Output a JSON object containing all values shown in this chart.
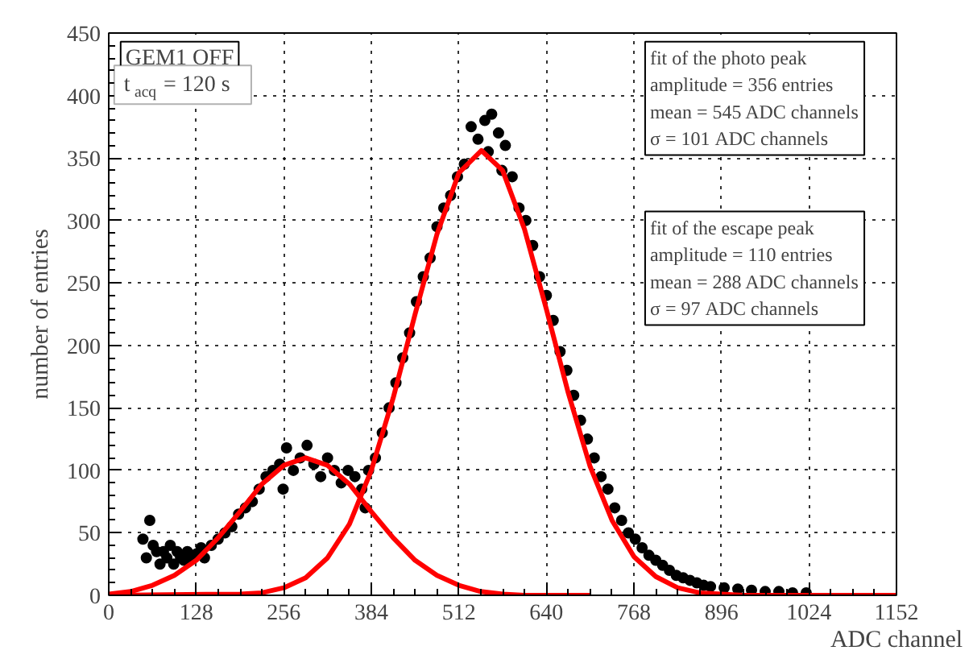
{
  "chart_data": {
    "type": "scatter",
    "xlabel": "ADC channel",
    "ylabel": "number of entries",
    "xlim": [
      0,
      1152
    ],
    "xticks": [
      0,
      128,
      256,
      384,
      512,
      640,
      768,
      896,
      1024,
      1152
    ],
    "ylim": [
      0,
      450
    ],
    "yticks": [
      0,
      50,
      100,
      150,
      200,
      250,
      300,
      350,
      400,
      450
    ],
    "grid": true,
    "marker": "circle",
    "line_style": "solid",
    "annotations": [
      "GEM1 OFF",
      "t$_{acq}$ = 120 s",
      "fit of the photo peak\namplitude = 356 entries\nmean = 545 ADC channels\nσ = 101 ADC channels",
      "fit of the escape peak\namplitude = 110 entries\nmean = 288 ADC channels\nσ = 97 ADC channels"
    ],
    "series": [
      {
        "color": "#000000",
        "x": [
          50,
          55,
          60,
          65,
          70,
          75,
          80,
          85,
          90,
          95,
          100,
          105,
          110,
          115,
          120,
          128,
          135,
          140,
          150,
          160,
          170,
          180,
          190,
          200,
          210,
          220,
          230,
          240,
          250,
          255,
          260,
          270,
          280,
          290,
          300,
          310,
          320,
          330,
          340,
          350,
          360,
          370,
          375,
          380,
          390,
          400,
          410,
          420,
          430,
          440,
          450,
          460,
          470,
          480,
          490,
          500,
          510,
          520,
          530,
          540,
          550,
          555,
          560,
          570,
          575,
          580,
          590,
          600,
          610,
          620,
          630,
          640,
          650,
          660,
          670,
          680,
          690,
          700,
          710,
          720,
          730,
          740,
          750,
          760,
          770,
          780,
          790,
          800,
          810,
          820,
          830,
          840,
          850,
          860,
          870,
          880,
          900,
          920,
          940,
          960,
          980,
          1000,
          1020
        ],
        "values": [
          45,
          30,
          60,
          40,
          35,
          25,
          35,
          30,
          40,
          25,
          35,
          30,
          28,
          35,
          30,
          33,
          38,
          30,
          40,
          45,
          50,
          55,
          65,
          70,
          75,
          85,
          95,
          100,
          105,
          85,
          118,
          100,
          110,
          120,
          105,
          95,
          110,
          100,
          90,
          100,
          95,
          85,
          70,
          100,
          110,
          130,
          150,
          170,
          190,
          210,
          235,
          255,
          270,
          295,
          310,
          320,
          335,
          345,
          375,
          365,
          380,
          355,
          385,
          370,
          340,
          360,
          335,
          310,
          300,
          280,
          255,
          240,
          220,
          195,
          180,
          160,
          140,
          125,
          110,
          95,
          85,
          70,
          60,
          50,
          45,
          38,
          32,
          28,
          24,
          20,
          16,
          14,
          12,
          10,
          8,
          7,
          6,
          5,
          4,
          3,
          3,
          2,
          2
        ]
      },
      {
        "type": "line",
        "marker": "none",
        "color": "#ff0000",
        "x": [
          0,
          32,
          64,
          96,
          128,
          160,
          192,
          224,
          256,
          288,
          320,
          352,
          384,
          416,
          448,
          480,
          512,
          544,
          576,
          608,
          640,
          704
        ],
        "values": [
          1,
          3,
          8,
          16,
          28,
          46,
          67,
          89,
          104,
          110,
          104,
          89,
          67,
          46,
          28,
          16,
          8,
          3,
          1,
          0,
          0,
          0
        ]
      },
      {
        "type": "line",
        "marker": "none",
        "color": "#ff0000",
        "x": [
          0,
          192,
          224,
          256,
          288,
          320,
          352,
          384,
          416,
          448,
          480,
          512,
          545,
          576,
          608,
          640,
          672,
          704,
          736,
          768,
          800,
          832,
          864,
          896,
          928,
          960,
          1024,
          1152
        ],
        "values": [
          0,
          1,
          2,
          6,
          14,
          30,
          57,
          100,
          158,
          225,
          289,
          338,
          356,
          340,
          293,
          229,
          162,
          103,
          60,
          31,
          15,
          6,
          2,
          1,
          0,
          0,
          0,
          0
        ]
      }
    ]
  }
}
